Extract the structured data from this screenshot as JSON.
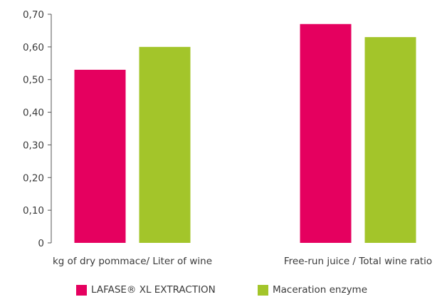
{
  "chart_data": {
    "type": "bar",
    "title": "",
    "xlabel": "",
    "ylabel": "",
    "categories": [
      "kg of dry pommace/ Liter of wine",
      "Free-run juice / Total wine ratio"
    ],
    "series": [
      {
        "name": "LAFASE® XL EXTRACTION",
        "color": "#e5005f",
        "values": [
          0.53,
          0.67
        ]
      },
      {
        "name": "Maceration enzyme",
        "color": "#a3c52a",
        "values": [
          0.6,
          0.63
        ]
      }
    ],
    "ylim": [
      0,
      0.7
    ],
    "yticks": [
      0,
      0.1,
      0.2,
      0.3,
      0.4,
      0.5,
      0.6,
      0.7
    ],
    "ytick_labels": [
      "0",
      "0,10",
      "0,20",
      "0,30",
      "0,40",
      "0,50",
      "0,60",
      "0,70"
    ],
    "grid": false,
    "legend_position": "bottom"
  }
}
